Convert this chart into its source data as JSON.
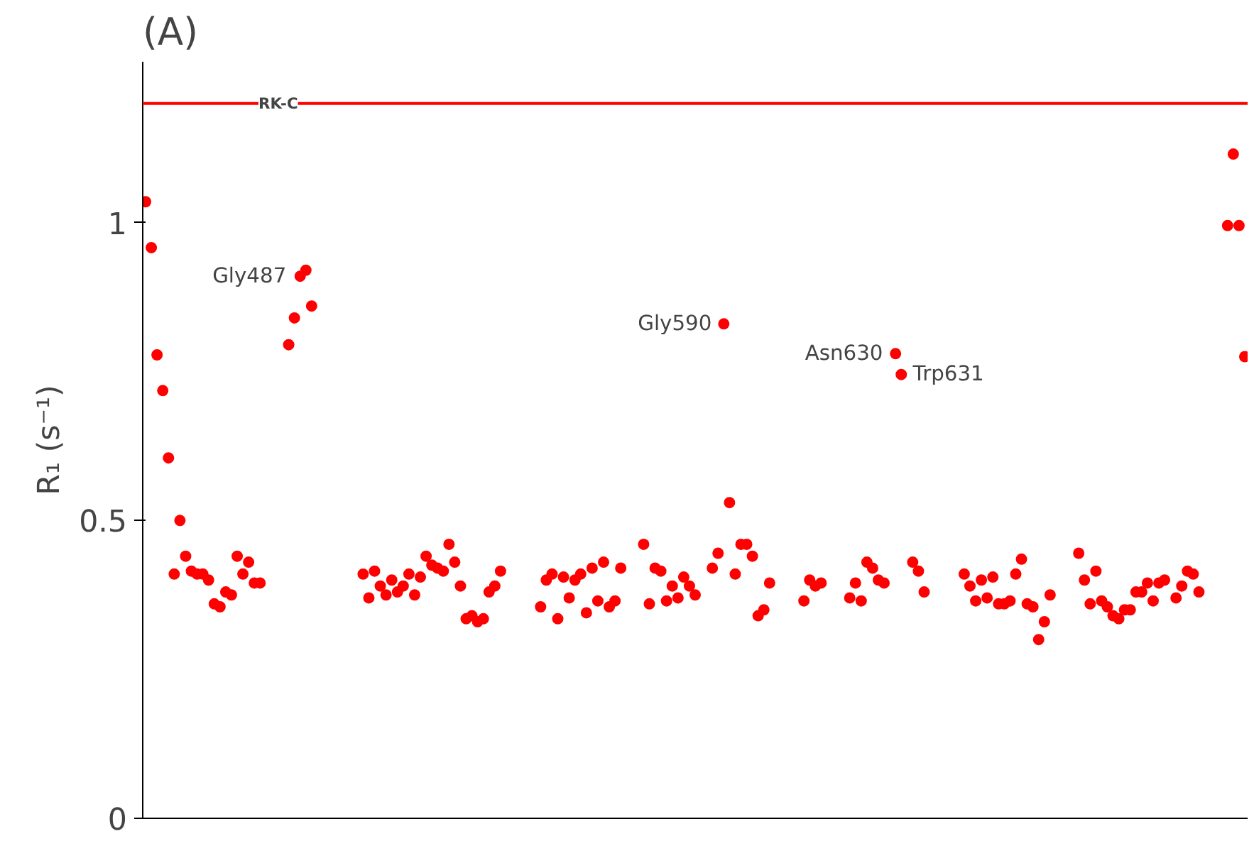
{
  "chart_data": {
    "type": "scatter",
    "title": "(A)",
    "ylabel": "R₁ (s⁻¹)",
    "categories": [
      null,
      null,
      null,
      null,
      null,
      null,
      null,
      null,
      null,
      null,
      null,
      null,
      null,
      null,
      null,
      null,
      null,
      null,
      null,
      null,
      null,
      null,
      null,
      null,
      null,
      null,
      null,
      null,
      null,
      null,
      null,
      null,
      null,
      null,
      null,
      null,
      null,
      null,
      null,
      null,
      null,
      null,
      null,
      null,
      null,
      null,
      null,
      null,
      null,
      null,
      null,
      null,
      null,
      null,
      null,
      null,
      null,
      null,
      null,
      null,
      null,
      null,
      null,
      null,
      null,
      null,
      null,
      null,
      null,
      null,
      null,
      null,
      null,
      null,
      null,
      null,
      null,
      null,
      null,
      null,
      null,
      null,
      null,
      null,
      null,
      null,
      null,
      null,
      null,
      null,
      null,
      null,
      null,
      null,
      null,
      null,
      null,
      null,
      null,
      null,
      null,
      null,
      null,
      null,
      null,
      null,
      null,
      null,
      null,
      null,
      null,
      null,
      null,
      null,
      null,
      null,
      null,
      null,
      null,
      null,
      null,
      null,
      null,
      null,
      null,
      null,
      null,
      null,
      null,
      null,
      null,
      null,
      null,
      null,
      null,
      null,
      null,
      null,
      null,
      null,
      null,
      null,
      null,
      null,
      null,
      null,
      null,
      null,
      null,
      null,
      null,
      null,
      null,
      null,
      null,
      null,
      null,
      null,
      null,
      null,
      null,
      null,
      null,
      null,
      null,
      null,
      null,
      null,
      null,
      null,
      null,
      null,
      null,
      null,
      null,
      null,
      null,
      null,
      null,
      null,
      null,
      null,
      null,
      null,
      null,
      null,
      null,
      null,
      null,
      null,
      null,
      null,
      null
    ],
    "series": [
      {
        "color": "#ff0000",
        "values": [
          1.035,
          0.958,
          0.778,
          0.718,
          0.605,
          0.41,
          0.5,
          0.44,
          0.415,
          0.41,
          0.41,
          0.4,
          0.36,
          0.355,
          0.38,
          0.375,
          0.44,
          0.41,
          0.43,
          0.395,
          0.395,
          null,
          null,
          null,
          null,
          0.795,
          0.84,
          0.91,
          0.92,
          0.86,
          null,
          null,
          null,
          null,
          null,
          null,
          null,
          null,
          0.41,
          0.37,
          0.415,
          0.39,
          0.375,
          0.4,
          0.38,
          0.39,
          0.41,
          0.375,
          0.405,
          0.44,
          0.425,
          0.42,
          0.415,
          0.46,
          0.43,
          0.39,
          0.335,
          0.34,
          0.33,
          0.335,
          0.38,
          0.39,
          0.415,
          null,
          null,
          null,
          null,
          null,
          null,
          0.355,
          0.4,
          0.41,
          0.335,
          0.405,
          0.37,
          0.4,
          0.41,
          0.345,
          0.42,
          0.365,
          0.43,
          0.355,
          0.365,
          0.42,
          null,
          null,
          null,
          0.46,
          0.36,
          0.42,
          0.415,
          0.365,
          0.39,
          0.37,
          0.405,
          0.39,
          0.375,
          null,
          null,
          0.42,
          0.445,
          0.83,
          0.53,
          0.41,
          0.46,
          0.46,
          0.44,
          0.34,
          0.35,
          0.395,
          null,
          null,
          null,
          null,
          null,
          0.365,
          0.4,
          0.39,
          0.395,
          null,
          null,
          null,
          null,
          0.37,
          0.395,
          0.365,
          0.43,
          0.42,
          0.4,
          0.395,
          null,
          0.78,
          0.745,
          null,
          0.43,
          0.415,
          0.38,
          null,
          null,
          null,
          null,
          null,
          null,
          0.41,
          0.39,
          0.365,
          0.4,
          0.37,
          0.405,
          0.36,
          0.36,
          0.365,
          0.41,
          0.435,
          0.36,
          0.355,
          0.3,
          0.33,
          0.375,
          null,
          null,
          null,
          null,
          0.445,
          0.4,
          0.36,
          0.415,
          0.365,
          0.355,
          0.34,
          0.335,
          0.35,
          0.35,
          0.38,
          0.38,
          0.395,
          0.365,
          0.395,
          0.4,
          null,
          0.37,
          0.39,
          0.415,
          0.41,
          0.38,
          null,
          null,
          null,
          null,
          0.995,
          1.115,
          0.995,
          0.775
        ]
      }
    ],
    "marker": "circle",
    "ylim": [
      0,
      1.27
    ],
    "yticks": [
      0,
      0.5,
      1
    ],
    "grid": false,
    "tick_labels": "y",
    "ref_lines": [
      {
        "axis": "y",
        "value": 1.2,
        "label": "RK-C",
        "color": "#ff0000"
      }
    ],
    "annotations": [
      "Gly487",
      "Gly590",
      "Asn630",
      "Trp631"
    ]
  }
}
